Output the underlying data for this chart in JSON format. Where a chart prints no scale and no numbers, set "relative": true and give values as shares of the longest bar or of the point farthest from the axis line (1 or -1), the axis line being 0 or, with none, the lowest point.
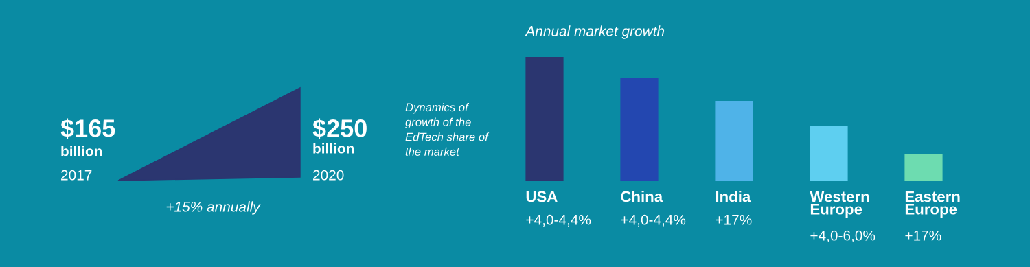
{
  "chart_data": [
    {
      "type": "other",
      "annotations": [
        "$165",
        "billion",
        "2017",
        "$250",
        "billion",
        "2020",
        "+15% annually"
      ]
    },
    {
      "type": "bar",
      "title": "Annual market growth",
      "annotations": [
        "Dynamics of\ngrowth of the\nEdTech share of\nthe market",
        "+4,0-4,4%",
        "+4,0-4,4%",
        "+17%",
        "+4,0-6,0%",
        "+17%"
      ],
      "categories": [
        "USA",
        "China",
        "India",
        "Western\nEurope",
        "Eastern\nEurope"
      ],
      "values": [
        1,
        0.833,
        0.644,
        0.439,
        0.217
      ],
      "colors": [
        "#2b3670",
        "#2347b0",
        "#4fb3e8",
        "#5ecff0",
        "#6ddcb0"
      ],
      "relative": true
    }
  ]
}
